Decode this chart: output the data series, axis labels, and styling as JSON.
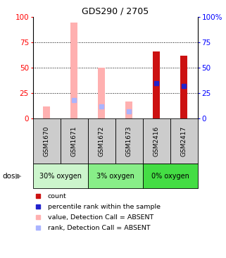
{
  "title": "GDS290 / 2705",
  "samples": [
    "GSM1670",
    "GSM1671",
    "GSM1672",
    "GSM1673",
    "GSM2416",
    "GSM2417"
  ],
  "groups": [
    {
      "label": "30% oxygen",
      "samples": [
        0,
        1
      ],
      "color": "#ccf5cc"
    },
    {
      "label": "3% oxygen",
      "samples": [
        2,
        3
      ],
      "color": "#88ee88"
    },
    {
      "label": "0% oxygen",
      "samples": [
        4,
        5
      ],
      "color": "#44dd44"
    }
  ],
  "value_absent": [
    12,
    94,
    50,
    17,
    0,
    0
  ],
  "rank_absent_y": [
    0,
    18,
    12,
    7,
    0,
    0
  ],
  "count": [
    0,
    0,
    0,
    0,
    66,
    62
  ],
  "percentile_rank": [
    0,
    0,
    0,
    0,
    35,
    32
  ],
  "ylim": [
    0,
    100
  ],
  "yticks": [
    0,
    25,
    50,
    75,
    100
  ],
  "color_pink": "#ffb0b0",
  "color_lightblue": "#aab4ff",
  "color_red": "#cc1111",
  "color_blue": "#2222cc",
  "color_gray": "#cccccc",
  "legend_items": [
    {
      "color": "#cc1111",
      "label": "count"
    },
    {
      "color": "#2222cc",
      "label": "percentile rank within the sample"
    },
    {
      "color": "#ffb0b0",
      "label": "value, Detection Call = ABSENT"
    },
    {
      "color": "#aab4ff",
      "label": "rank, Detection Call = ABSENT"
    }
  ]
}
